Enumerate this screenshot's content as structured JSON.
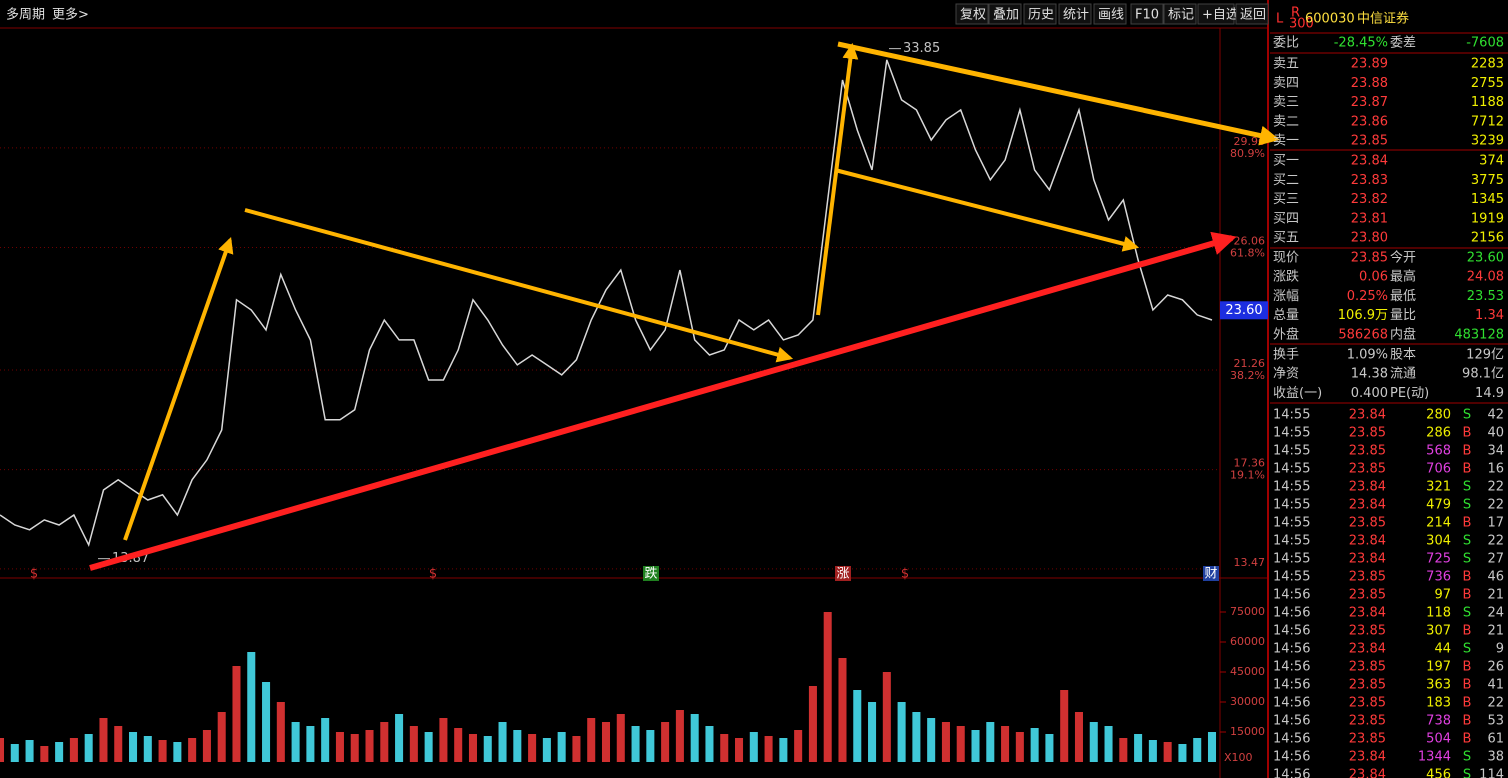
{
  "toolbar": {
    "left": [
      "多周期",
      "更多>"
    ],
    "buttons": [
      "复权",
      "叠加",
      "历史",
      "统计",
      "画线",
      "F10",
      "标记",
      "+自选",
      "返回"
    ]
  },
  "chart_data": [
    {
      "type": "line",
      "color": "#d8d8d8",
      "values": [
        15.58,
        15.19,
        15.0,
        15.39,
        15.19,
        15.58,
        14.41,
        16.56,
        16.96,
        16.56,
        16.17,
        16.37,
        15.58,
        16.96,
        17.74,
        18.91,
        24.01,
        23.61,
        22.83,
        25.0,
        23.61,
        22.44,
        19.31,
        19.31,
        19.7,
        22.05,
        23.22,
        22.44,
        22.44,
        20.87,
        20.87,
        22.05,
        24.01,
        23.22,
        22.24,
        21.46,
        21.85,
        21.46,
        21.07,
        21.66,
        23.22,
        24.4,
        25.18,
        23.22,
        22.05,
        22.83,
        25.18,
        22.44,
        21.85,
        22.05,
        23.22,
        22.83,
        23.22,
        22.44,
        22.63,
        23.22,
        27.92,
        32.62,
        30.66,
        29.1,
        33.41,
        31.84,
        31.45,
        30.27,
        31.06,
        31.45,
        29.88,
        28.71,
        29.49,
        31.45,
        29.1,
        28.32,
        29.88,
        31.45,
        28.71,
        27.14,
        27.92,
        25.57,
        23.61,
        24.2,
        24.01,
        23.42,
        23.22
      ],
      "ylim": [
        13.23,
        34.58
      ],
      "yticks": [
        13.47,
        17.36,
        21.26,
        26.06,
        29.96
      ],
      "grid": true,
      "retracement_labels": [
        {
          "value": 17.36,
          "label": "19.1%"
        },
        {
          "value": 21.26,
          "label": "38.2%"
        },
        {
          "value": 26.06,
          "label": "61.8%"
        },
        {
          "value": 29.96,
          "label": "80.9%"
        }
      ],
      "current_price": {
        "value": 23.6,
        "label": "23.60"
      },
      "annotations": [
        {
          "value": 33.85,
          "label": "33.85"
        },
        {
          "value": 13.87,
          "label": "13.87"
        }
      ],
      "markers": [
        "$",
        "$",
        "跌",
        "涨",
        "$",
        "财"
      ]
    },
    {
      "type": "bar",
      "values": [
        12000,
        9000,
        11000,
        8000,
        10000,
        12000,
        14000,
        22000,
        18000,
        15000,
        13000,
        11000,
        10000,
        12000,
        16000,
        25000,
        48000,
        55000,
        40000,
        30000,
        20000,
        18000,
        22000,
        15000,
        14000,
        16000,
        20000,
        24000,
        18000,
        15000,
        22000,
        17000,
        14000,
        13000,
        20000,
        16000,
        14000,
        12000,
        15000,
        13000,
        22000,
        20000,
        24000,
        18000,
        16000,
        20000,
        26000,
        24000,
        18000,
        14000,
        12000,
        15000,
        13000,
        12000,
        16000,
        38000,
        75000,
        52000,
        36000,
        30000,
        45000,
        30000,
        25000,
        22000,
        20000,
        18000,
        16000,
        20000,
        18000,
        15000,
        17000,
        14000,
        36000,
        25000,
        20000,
        18000,
        12000,
        14000,
        11000,
        10000,
        9000,
        12000,
        15000
      ],
      "ylim": [
        0,
        84000
      ],
      "yticks": [
        15000,
        30000,
        45000,
        60000,
        75000
      ],
      "unit_label": "X100"
    }
  ],
  "quote": {
    "header": {
      "market": "L",
      "badge_top": "R",
      "badge_bottom": "300",
      "code": "600030",
      "name": "中信证券"
    },
    "summary": [
      "委比",
      "-28.45%",
      "委差",
      "-7608"
    ],
    "asks": [
      [
        "卖五",
        "23.89",
        "2283"
      ],
      [
        "卖四",
        "23.88",
        "2755"
      ],
      [
        "卖三",
        "23.87",
        "1188"
      ],
      [
        "卖二",
        "23.86",
        "7712"
      ],
      [
        "卖一",
        "23.85",
        "3239"
      ]
    ],
    "bids": [
      [
        "买一",
        "23.84",
        "374"
      ],
      [
        "买二",
        "23.83",
        "3775"
      ],
      [
        "买三",
        "23.82",
        "1345"
      ],
      [
        "买四",
        "23.81",
        "1919"
      ],
      [
        "买五",
        "23.80",
        "2156"
      ]
    ],
    "stats": [
      [
        "现价",
        "23.85",
        "今开",
        "23.60"
      ],
      [
        "涨跌",
        "0.06",
        "最高",
        "24.08"
      ],
      [
        "涨幅",
        "0.25%",
        "最低",
        "23.53"
      ],
      [
        "总量",
        "106.9万",
        "量比",
        "1.34"
      ],
      [
        "外盘",
        "586268",
        "内盘",
        "483128"
      ]
    ],
    "fundamentals": [
      [
        "换手",
        "1.09%",
        "股本",
        "129亿"
      ],
      [
        "净资",
        "14.38",
        "流通",
        "98.1亿"
      ],
      [
        "收益(一)",
        "0.400",
        "PE(动)",
        "14.9"
      ]
    ],
    "trades": [
      [
        "14:55",
        "23.84",
        "280",
        "S",
        "42"
      ],
      [
        "14:55",
        "23.85",
        "286",
        "B",
        "40"
      ],
      [
        "14:55",
        "23.85",
        "568",
        "B",
        "34"
      ],
      [
        "14:55",
        "23.85",
        "706",
        "B",
        "16"
      ],
      [
        "14:55",
        "23.84",
        "321",
        "S",
        "22"
      ],
      [
        "14:55",
        "23.84",
        "479",
        "S",
        "22"
      ],
      [
        "14:55",
        "23.85",
        "214",
        "B",
        "17"
      ],
      [
        "14:55",
        "23.84",
        "304",
        "S",
        "22"
      ],
      [
        "14:55",
        "23.84",
        "725",
        "S",
        "27"
      ],
      [
        "14:55",
        "23.85",
        "736",
        "B",
        "46"
      ],
      [
        "14:56",
        "23.85",
        "97",
        "B",
        "21"
      ],
      [
        "14:56",
        "23.84",
        "118",
        "S",
        "24"
      ],
      [
        "14:56",
        "23.85",
        "307",
        "B",
        "21"
      ],
      [
        "14:56",
        "23.84",
        "44",
        "S",
        "9"
      ],
      [
        "14:56",
        "23.85",
        "197",
        "B",
        "26"
      ],
      [
        "14:56",
        "23.85",
        "363",
        "B",
        "41"
      ],
      [
        "14:56",
        "23.85",
        "183",
        "B",
        "22"
      ],
      [
        "14:56",
        "23.85",
        "738",
        "B",
        "53"
      ],
      [
        "14:56",
        "23.85",
        "504",
        "B",
        "61"
      ],
      [
        "14:56",
        "23.84",
        "1344",
        "S",
        "38"
      ],
      [
        "14:56",
        "23.84",
        "456",
        "S",
        "114"
      ]
    ]
  }
}
